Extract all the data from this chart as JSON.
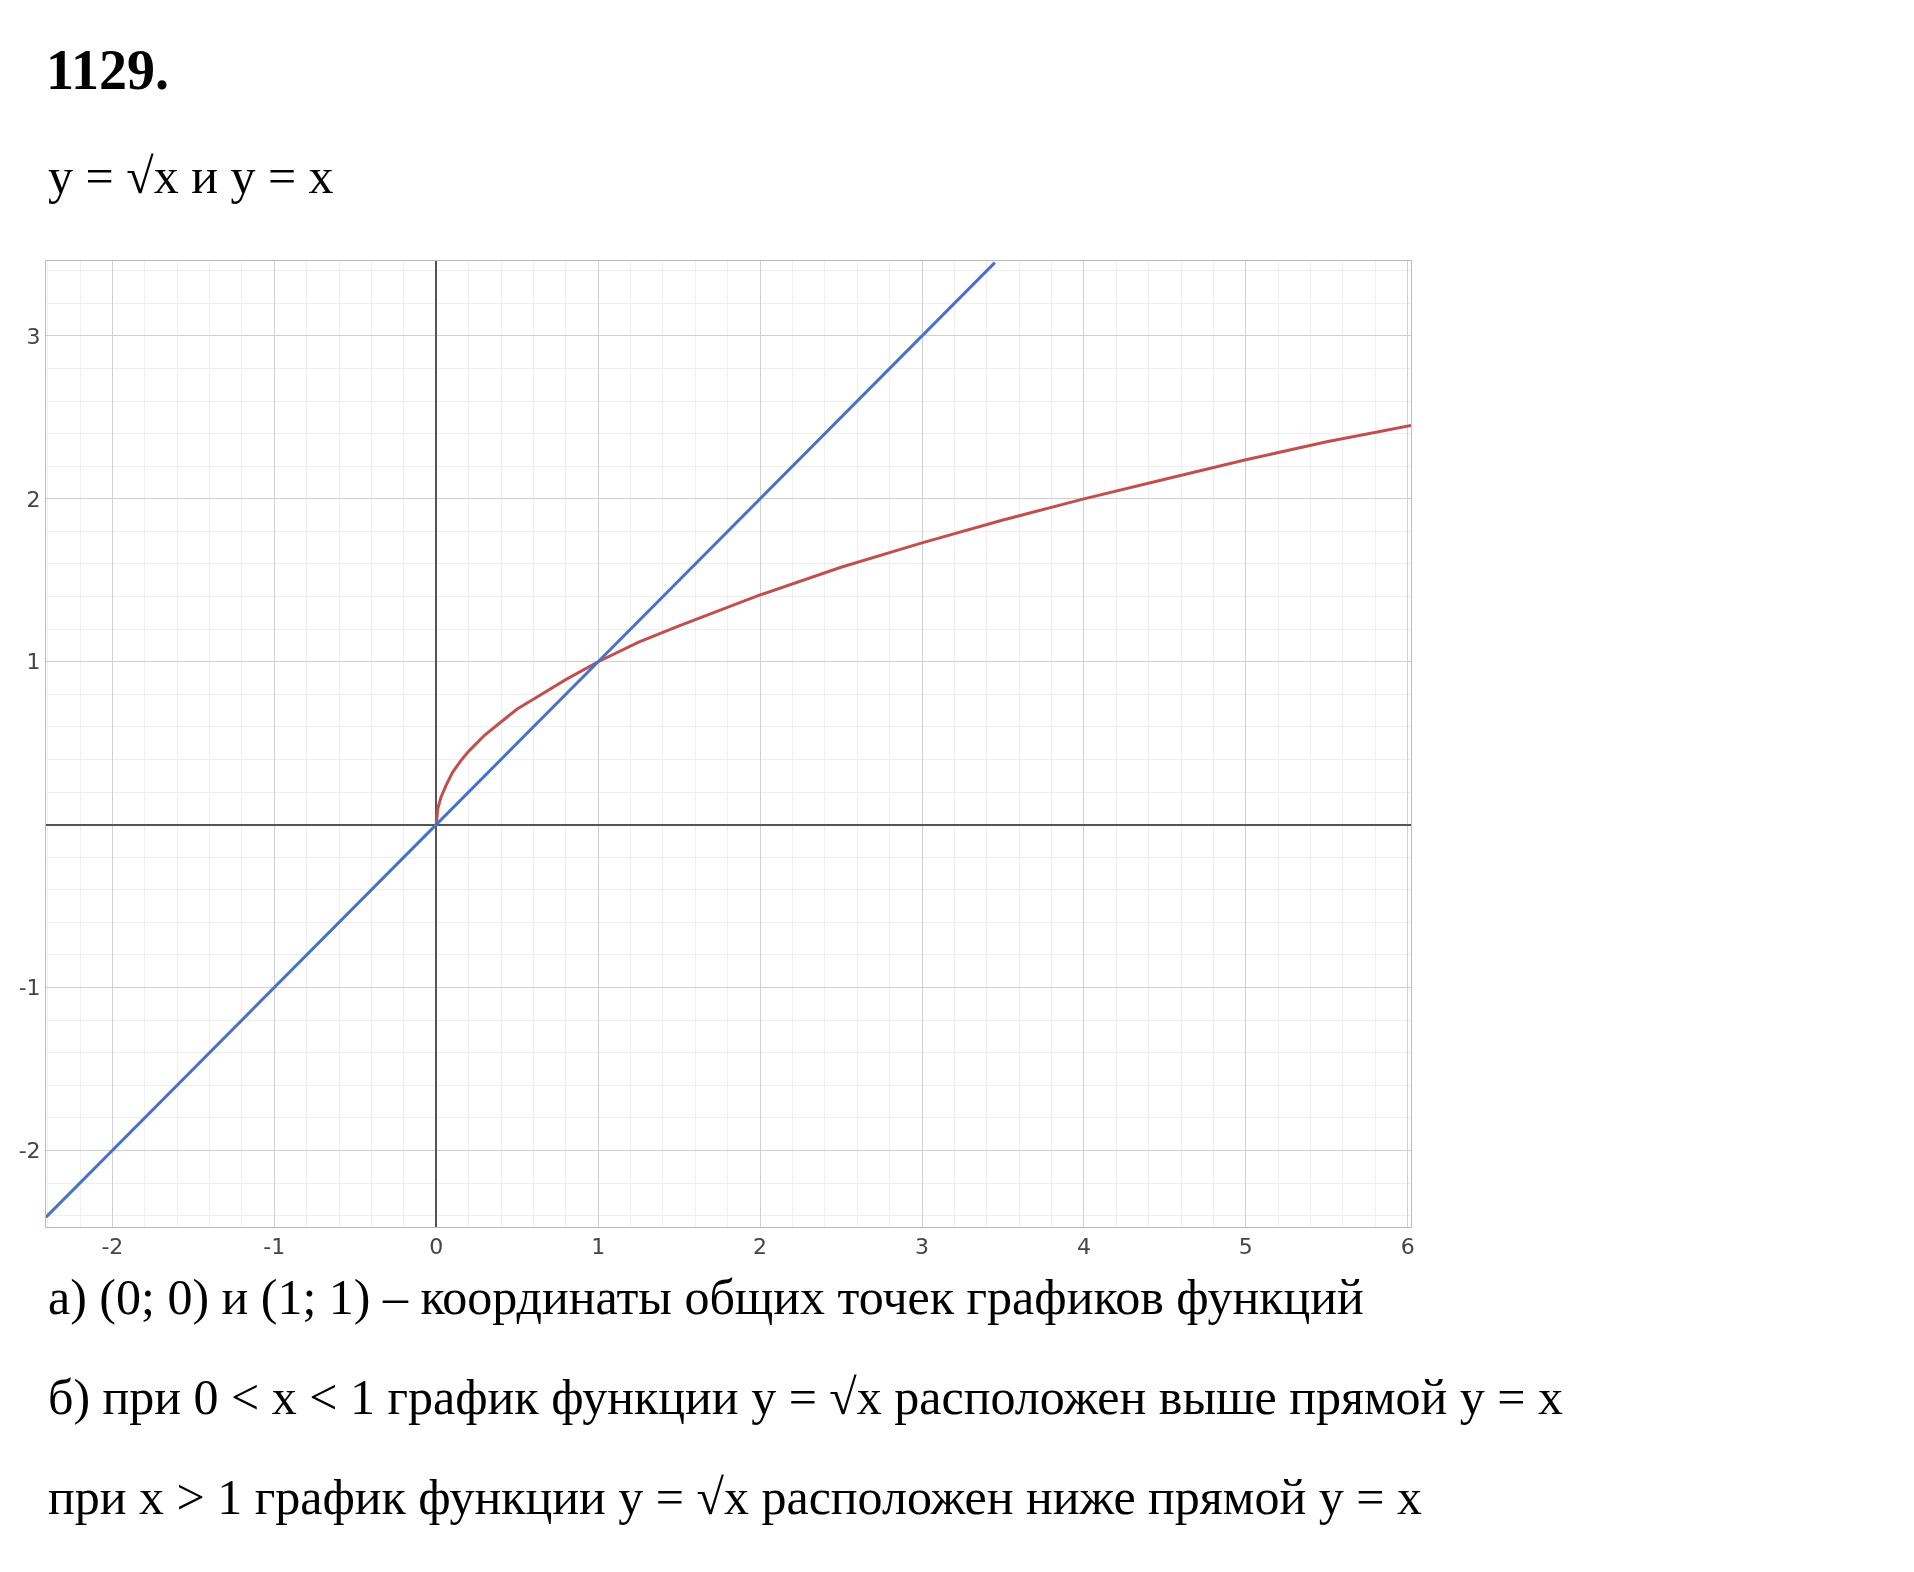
{
  "chart_data": {
    "type": "line",
    "title": "1129.",
    "subtitle": "y = √x и y = x",
    "series": [
      {
        "color": "#c0504d",
        "x": [
          0,
          0.01,
          0.03,
          0.06,
          0.1,
          0.15,
          0.2,
          0.3,
          0.4,
          0.5,
          0.6,
          0.8,
          1,
          1.25,
          1.5,
          2,
          2.5,
          3,
          3.5,
          4,
          4.5,
          5,
          5.5,
          6.02
        ],
        "values": [
          0,
          0.1,
          0.17,
          0.24,
          0.32,
          0.39,
          0.45,
          0.55,
          0.63,
          0.71,
          0.77,
          0.89,
          1,
          1.12,
          1.22,
          1.41,
          1.58,
          1.73,
          1.87,
          2,
          2.12,
          2.24,
          2.35,
          2.45
        ]
      },
      {
        "color": "#4a72c4",
        "x": [
          -2.41,
          0,
          1,
          3.45
        ],
        "values": [
          -2.41,
          0,
          1,
          3.45
        ]
      }
    ],
    "xlim": [
      -2.41,
      6.02
    ],
    "ylim": [
      -2.47,
      3.46
    ],
    "xticks": [
      -2,
      -1,
      0,
      1,
      2,
      3,
      4,
      5,
      6
    ],
    "yticks": [
      -2,
      -1,
      1,
      2,
      3
    ],
    "grid": true,
    "marker": "none",
    "line_style": "solid",
    "annotations": [
      "а) (0; 0) и (1; 1) – координаты общих точек графиков функций",
      "б) при 0 < x < 1 график функции y = √x расположен выше прямой y = x",
      "при x > 1 график функции y = √x расположен ниже прямой y = x"
    ]
  }
}
